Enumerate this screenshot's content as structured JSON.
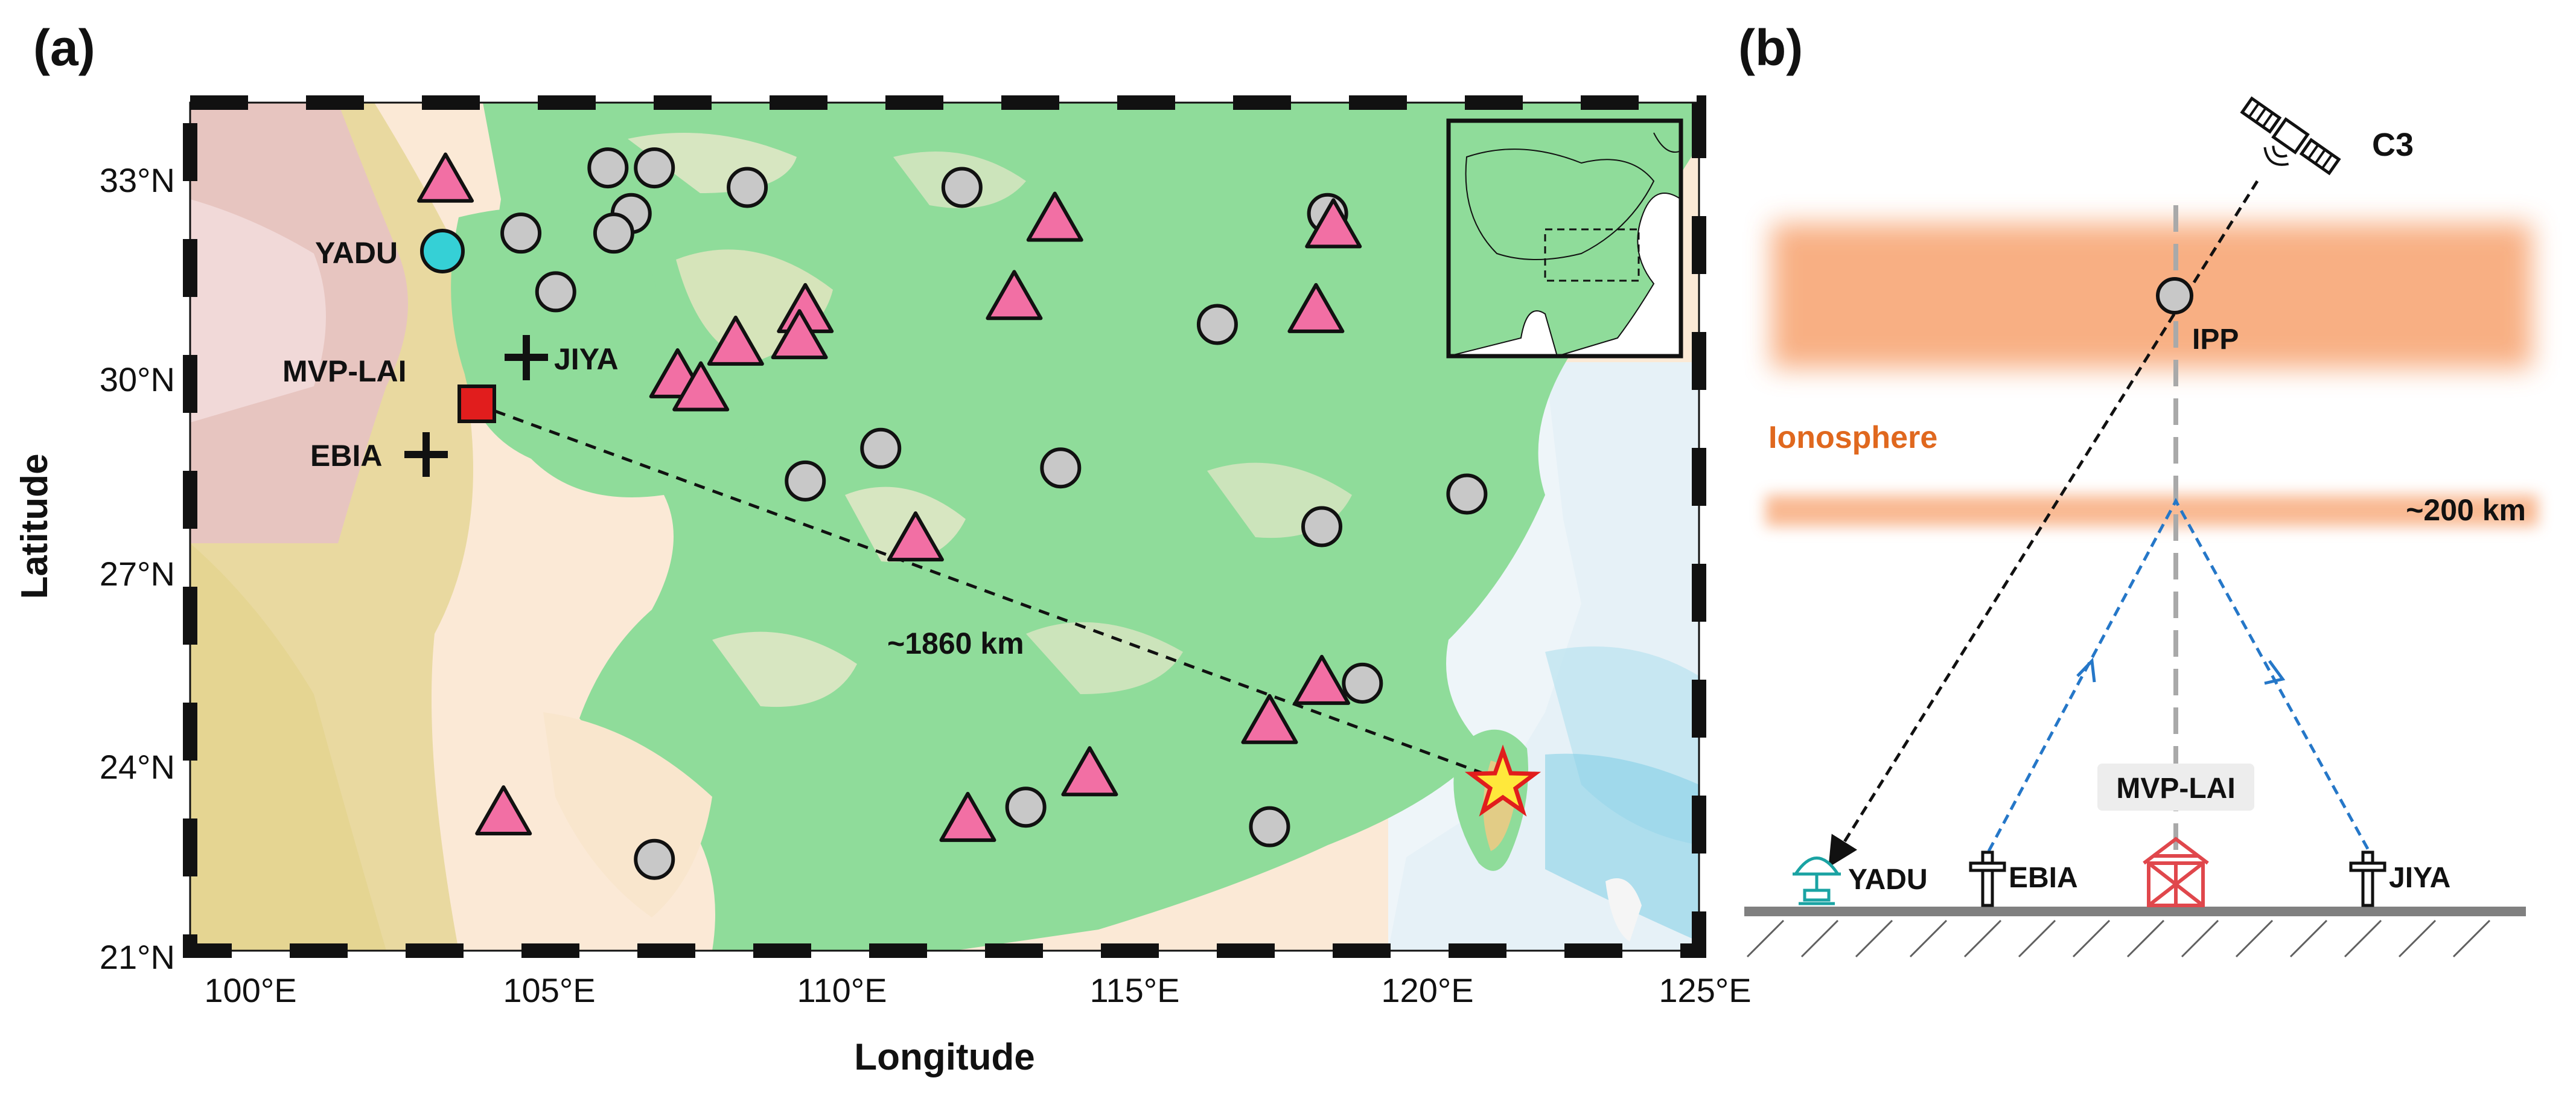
{
  "panel_a": {
    "label": "(a)",
    "xlabel": "Longitude",
    "ylabel": "Latitude",
    "x_ticks": [
      "100°E",
      "105°E",
      "110°E",
      "115°E",
      "120°E",
      "125°E"
    ],
    "y_ticks": [
      "33°N",
      "30°N",
      "27°N",
      "24°N",
      "21°N"
    ],
    "x_range": [
      99,
      125
    ],
    "y_range": [
      21,
      34
    ],
    "distance_label": "~1860 km",
    "stations": [
      {
        "name": "YADU",
        "lon": 103.3,
        "lat": 31.9,
        "symbol": "circle",
        "color": "#35d0d6"
      },
      {
        "name": "MVP-LAI",
        "lon": 103.9,
        "lat": 29.6,
        "symbol": "square",
        "color": "#e11d1d"
      },
      {
        "name": "JIYA",
        "lon": 104.8,
        "lat": 30.3,
        "symbol": "cross",
        "color": "#111111"
      },
      {
        "name": "EBIA",
        "lon": 102.8,
        "lat": 28.8,
        "symbol": "cross",
        "color": "#111111"
      }
    ],
    "epicenter": {
      "lon": 121.6,
      "lat": 23.8,
      "color": "#ffe83b",
      "edge": "#e11d1d"
    },
    "circles": [
      [
        104.7,
        32.0
      ],
      [
        106.2,
        33.0
      ],
      [
        107.0,
        33.0
      ],
      [
        106.6,
        32.3
      ],
      [
        106.3,
        32.0
      ],
      [
        108.6,
        32.7
      ],
      [
        105.3,
        31.1
      ],
      [
        112.3,
        32.7
      ],
      [
        116.7,
        30.6
      ],
      [
        118.6,
        32.3
      ],
      [
        110.9,
        28.7
      ],
      [
        109.6,
        28.2
      ],
      [
        114.0,
        28.4
      ],
      [
        118.5,
        27.5
      ],
      [
        121.0,
        28.0
      ],
      [
        119.2,
        25.1
      ],
      [
        113.4,
        23.2
      ],
      [
        117.6,
        22.9
      ],
      [
        107.0,
        22.4
      ]
    ],
    "triangles": [
      [
        103.4,
        32.8
      ],
      [
        113.9,
        32.2
      ],
      [
        118.7,
        32.1
      ],
      [
        109.6,
        30.8
      ],
      [
        113.2,
        31.0
      ],
      [
        118.4,
        30.8
      ],
      [
        108.4,
        30.3
      ],
      [
        109.5,
        30.4
      ],
      [
        107.4,
        29.8
      ],
      [
        107.8,
        29.6
      ],
      [
        111.5,
        27.3
      ],
      [
        118.5,
        25.1
      ],
      [
        117.6,
        24.5
      ],
      [
        114.5,
        23.7
      ],
      [
        112.4,
        23.0
      ],
      [
        104.4,
        23.1
      ]
    ],
    "colors": {
      "land_green": "#8fdc9a",
      "triangle": "#f26fa4",
      "circle": "#c8c8c8",
      "sea": "#e9f3f8"
    }
  },
  "panel_b": {
    "label": "(b)",
    "satellite": "C3",
    "ipp": "IPP",
    "ionosphere": "Ionosphere",
    "altitude": "~200 km",
    "center_station": "MVP-LAI",
    "ground_stations": [
      "YADU",
      "EBIA",
      "JIYA"
    ],
    "colors": {
      "ionosphere": "#f7a26e",
      "ionosphere_label": "#e0681e",
      "wave_path": "#2577c8",
      "lai_icon": "#e0474c",
      "yadu_icon": "#1aa3a3"
    }
  }
}
